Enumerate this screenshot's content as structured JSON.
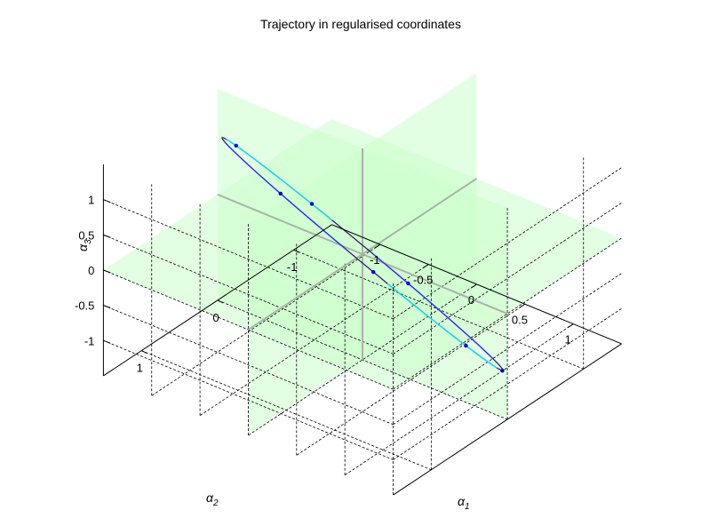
{
  "chart_data": {
    "type": "line3d",
    "title": "Trajectory in regularised coordinates",
    "xlabel": "α",
    "xlabel_sub": "1",
    "ylabel": "α",
    "ylabel_sub": "2",
    "zlabel": "α",
    "zlabel_sub": "3",
    "xlim": [
      -1.5,
      1.5
    ],
    "ylim": [
      -1.5,
      1.5
    ],
    "zlim": [
      -1.5,
      1.5
    ],
    "xticks": [
      -1,
      -0.5,
      0,
      0.5,
      1
    ],
    "xtick_labels": [
      "-1",
      "-0.5",
      "0",
      "0.5",
      "1"
    ],
    "yticks": [
      -1,
      0,
      1
    ],
    "ytick_labels": [
      "-1",
      "0",
      "1"
    ],
    "zticks": [
      -1,
      -0.5,
      0,
      0.5,
      1
    ],
    "ztick_labels": [
      "-1",
      "-0.5",
      "0",
      "0.5",
      "1"
    ],
    "grid": true,
    "coordinate_planes": true,
    "colors": {
      "planes": "#ccffcc",
      "plane_axes": "#a8b4a8",
      "trajectory_a": "#3a1a78",
      "trajectory_b": "#00e5ff",
      "trajectory_c": "#3030ff",
      "markers": "#0000cc",
      "grid": "#000000"
    },
    "trajectory": {
      "shape": "closed elliptical orbit",
      "center": [
        0,
        0,
        0
      ],
      "semi_axis_1": [
        1.1,
        -0.45,
        -1.35
      ],
      "semi_axis_2": [
        0.12,
        0.14,
        0.03
      ],
      "marker_phases": [
        0.1,
        0.75,
        1.5,
        2.2,
        3.6,
        4.35,
        5.05
      ]
    }
  }
}
